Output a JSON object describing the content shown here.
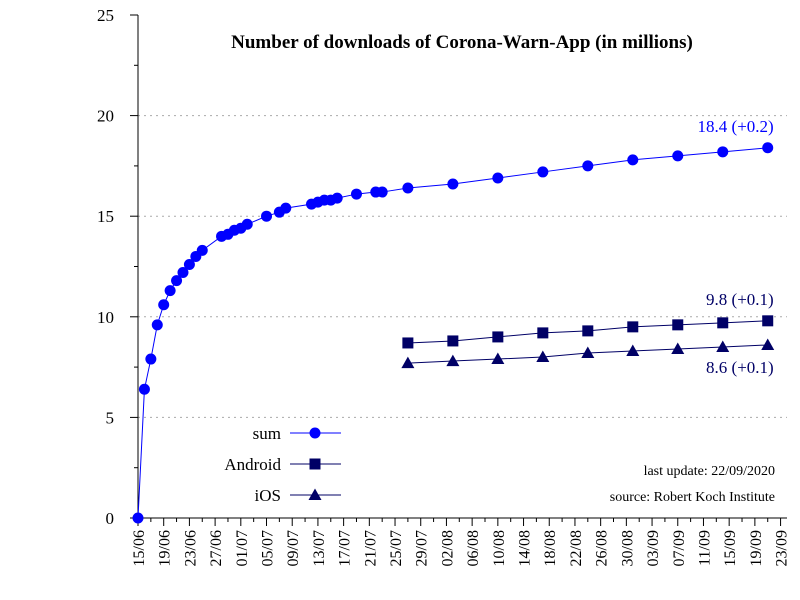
{
  "chart_data": {
    "type": "line",
    "title": "Number of downloads of Corona-Warn-App (in millions)",
    "xlabel": "",
    "ylabel": "",
    "ylim": [
      0,
      25
    ],
    "y_ticks": [
      0,
      5,
      10,
      15,
      20,
      25
    ],
    "x_tick_labels": [
      "15/06",
      "19/06",
      "23/06",
      "27/06",
      "01/07",
      "05/07",
      "09/07",
      "13/07",
      "17/07",
      "21/07",
      "25/07",
      "29/07",
      "02/08",
      "06/08",
      "10/08",
      "14/08",
      "18/08",
      "22/08",
      "26/08",
      "30/08",
      "03/09",
      "07/09",
      "11/09",
      "15/09",
      "19/09",
      "23/09"
    ],
    "grid": "horizontal dotted",
    "legend_placement": "bottom-left",
    "colors": {
      "sum": "#0000ff",
      "android": "#000066",
      "ios": "#000066"
    },
    "series": [
      {
        "key": "sum",
        "name": "sum",
        "marker": "circle",
        "points": [
          [
            "2020-06-15",
            0
          ],
          [
            "2020-06-16",
            6.4
          ],
          [
            "2020-06-17",
            7.9
          ],
          [
            "2020-06-18",
            9.6
          ],
          [
            "2020-06-19",
            10.6
          ],
          [
            "2020-06-20",
            11.3
          ],
          [
            "2020-06-21",
            11.8
          ],
          [
            "2020-06-22",
            12.2
          ],
          [
            "2020-06-23",
            12.6
          ],
          [
            "2020-06-24",
            13.0
          ],
          [
            "2020-06-25",
            13.3
          ],
          [
            "2020-06-28",
            14.0
          ],
          [
            "2020-06-29",
            14.1
          ],
          [
            "2020-06-30",
            14.3
          ],
          [
            "2020-07-01",
            14.4
          ],
          [
            "2020-07-02",
            14.6
          ],
          [
            "2020-07-05",
            15.0
          ],
          [
            "2020-07-07",
            15.2
          ],
          [
            "2020-07-08",
            15.4
          ],
          [
            "2020-07-12",
            15.6
          ],
          [
            "2020-07-13",
            15.7
          ],
          [
            "2020-07-14",
            15.8
          ],
          [
            "2020-07-15",
            15.8
          ],
          [
            "2020-07-16",
            15.9
          ],
          [
            "2020-07-19",
            16.1
          ],
          [
            "2020-07-22",
            16.2
          ],
          [
            "2020-07-23",
            16.2
          ],
          [
            "2020-07-27",
            16.4
          ],
          [
            "2020-08-03",
            16.6
          ],
          [
            "2020-08-10",
            16.9
          ],
          [
            "2020-08-17",
            17.2
          ],
          [
            "2020-08-24",
            17.5
          ],
          [
            "2020-08-31",
            17.8
          ],
          [
            "2020-09-07",
            18.0
          ],
          [
            "2020-09-14",
            18.2
          ],
          [
            "2020-09-21",
            18.4
          ]
        ]
      },
      {
        "key": "android",
        "name": "Android",
        "marker": "square",
        "points": [
          [
            "2020-07-27",
            8.7
          ],
          [
            "2020-08-03",
            8.8
          ],
          [
            "2020-08-10",
            9.0
          ],
          [
            "2020-08-17",
            9.2
          ],
          [
            "2020-08-24",
            9.3
          ],
          [
            "2020-08-31",
            9.5
          ],
          [
            "2020-09-07",
            9.6
          ],
          [
            "2020-09-14",
            9.7
          ],
          [
            "2020-09-21",
            9.8
          ]
        ]
      },
      {
        "key": "ios",
        "name": "iOS",
        "marker": "triangle",
        "points": [
          [
            "2020-07-27",
            7.7
          ],
          [
            "2020-08-03",
            7.8
          ],
          [
            "2020-08-10",
            7.9
          ],
          [
            "2020-08-17",
            8.0
          ],
          [
            "2020-08-24",
            8.2
          ],
          [
            "2020-08-31",
            8.3
          ],
          [
            "2020-09-07",
            8.4
          ],
          [
            "2020-09-14",
            8.5
          ],
          [
            "2020-09-21",
            8.6
          ]
        ]
      }
    ],
    "annotations": [
      {
        "series": "sum",
        "text": "18.4 (+0.2)"
      },
      {
        "series": "android",
        "text": "9.8 (+0.1)"
      },
      {
        "series": "ios",
        "text": "8.6 (+0.1)"
      }
    ],
    "notes": [
      "last update: 22/09/2020",
      "source: Robert Koch Institute"
    ]
  }
}
